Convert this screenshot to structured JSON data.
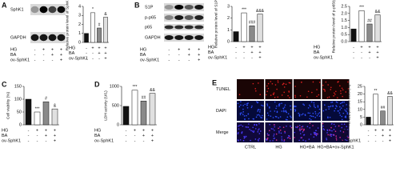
{
  "blots": [
    {
      "panel": "A",
      "bands": [
        "SphK1",
        "GAPDH"
      ],
      "conditions": [
        {
          "label": "HG",
          "signs": [
            "-",
            "+",
            "+",
            "+"
          ]
        },
        {
          "label": "BA",
          "signs": [
            "-",
            "-",
            "+",
            "+"
          ]
        },
        {
          "label": "ov-SphK1",
          "signs": [
            "-",
            "-",
            "-",
            "+"
          ]
        }
      ]
    },
    {
      "panel": "B",
      "bands": [
        "S1P",
        "p-p65",
        "p65",
        "GAPDH"
      ],
      "conditions": [
        {
          "label": "HG",
          "signs": [
            "-",
            "+",
            "+",
            "+"
          ]
        },
        {
          "label": "BA",
          "signs": [
            "-",
            "-",
            "+",
            "+"
          ]
        },
        {
          "label": "ov-SphK1",
          "signs": [
            "-",
            "-",
            "-",
            "+"
          ]
        }
      ]
    }
  ],
  "images": {
    "panel": "E",
    "rows": [
      "TUNEL",
      "DAPI",
      "Merge"
    ],
    "columns": [
      "CTRL",
      "HG",
      "HG+BA",
      "HG+BA+ov-SphK1"
    ]
  },
  "chart_data": [
    {
      "type": "bar",
      "y_label": "Relative protein level of SphK1",
      "values": [
        1.0,
        3.3,
        1.6,
        2.8
      ],
      "annotations": [
        null,
        "*",
        "#",
        "&"
      ],
      "colors": [
        "#111111",
        "#ffffff",
        "#8a8a8a",
        "#e0e0e0"
      ],
      "ylim": [
        0,
        4
      ],
      "yticks": [
        0,
        1,
        2,
        3,
        4
      ],
      "conditions": [
        {
          "label": "HG",
          "signs": [
            "-",
            "+",
            "+",
            "+"
          ]
        },
        {
          "label": "BA",
          "signs": [
            "-",
            "-",
            "+",
            "+"
          ]
        },
        {
          "label": "ov-SphK1",
          "signs": [
            "-",
            "-",
            "-",
            "+"
          ]
        }
      ]
    },
    {
      "type": "bar",
      "y_label": "Relative protein level of S1P",
      "values": [
        0.85,
        2.45,
        1.35,
        2.35
      ],
      "annotations": [
        null,
        "***",
        "###",
        "&&&"
      ],
      "colors": [
        "#111111",
        "#ffffff",
        "#8a8a8a",
        "#e0e0e0"
      ],
      "ylim": [
        0,
        3
      ],
      "yticks": [
        0,
        1,
        2,
        3
      ],
      "conditions": [
        {
          "label": "HG",
          "signs": [
            "-",
            "+",
            "+",
            "+"
          ]
        },
        {
          "label": "BA",
          "signs": [
            "-",
            "-",
            "+",
            "+"
          ]
        },
        {
          "label": "ov-SphK1",
          "signs": [
            "-",
            "-",
            "-",
            "+"
          ]
        }
      ]
    },
    {
      "type": "bar",
      "y_label": "Relative protein level of p-p65/p65",
      "values": [
        0.9,
        2.2,
        1.25,
        1.9
      ],
      "annotations": [
        null,
        "***",
        "##",
        "&&"
      ],
      "colors": [
        "#111111",
        "#ffffff",
        "#8a8a8a",
        "#e0e0e0"
      ],
      "ylim": [
        0,
        2.5
      ],
      "yticks": [
        {
          "value": 0,
          "label": "0.0"
        },
        0.5,
        {
          "value": 1,
          "label": "1.0"
        },
        1.5,
        {
          "value": 2,
          "label": "2.0"
        },
        2.5
      ],
      "conditions": [
        {
          "label": "HG",
          "signs": [
            "-",
            "+",
            "+",
            "+"
          ]
        },
        {
          "label": "BA",
          "signs": [
            "-",
            "-",
            "+",
            "+"
          ]
        },
        {
          "label": "ov-SphK1",
          "signs": [
            "-",
            "-",
            "-",
            "+"
          ]
        }
      ]
    },
    {
      "type": "bar",
      "panel": "C",
      "y_label": "Cell viability (%)",
      "values": [
        100,
        50,
        90,
        62
      ],
      "annotations": [
        null,
        "***",
        "#",
        "&"
      ],
      "colors": [
        "#111111",
        "#ffffff",
        "#8a8a8a",
        "#e0e0e0"
      ],
      "ylim": [
        0,
        150
      ],
      "yticks": [
        0,
        50,
        100,
        150
      ],
      "conditions": [
        {
          "label": "HG",
          "signs": [
            "-",
            "+",
            "+",
            "+"
          ]
        },
        {
          "label": "BA",
          "signs": [
            "-",
            "-",
            "+",
            "+"
          ]
        },
        {
          "label": "ov-SphK1",
          "signs": [
            "-",
            "-",
            "-",
            "+"
          ]
        }
      ]
    },
    {
      "type": "bar",
      "panel": "D",
      "y_label": "LDH activity (U/L)",
      "values": [
        480,
        900,
        620,
        820
      ],
      "annotations": [
        null,
        "***",
        "##",
        "&&"
      ],
      "colors": [
        "#111111",
        "#ffffff",
        "#8a8a8a",
        "#e0e0e0"
      ],
      "ylim": [
        0,
        1000
      ],
      "yticks": [
        0,
        500,
        1000
      ],
      "conditions": [
        {
          "label": "HG",
          "signs": [
            "-",
            "+",
            "+",
            "+"
          ]
        },
        {
          "label": "BA",
          "signs": [
            "-",
            "-",
            "+",
            "+"
          ]
        },
        {
          "label": "ov-SphK1",
          "signs": [
            "-",
            "-",
            "-",
            "+"
          ]
        }
      ]
    },
    {
      "type": "bar",
      "y_label": "TUNEL positive cells (%)",
      "values": [
        5,
        20,
        9,
        18.5
      ],
      "annotations": [
        null,
        "**",
        "##",
        "&&"
      ],
      "colors": [
        "#111111",
        "#ffffff",
        "#8a8a8a",
        "#e0e0e0"
      ],
      "ylim": [
        0,
        25
      ],
      "yticks": [
        0,
        5,
        10,
        15,
        20,
        25
      ],
      "conditions": [
        {
          "label": "HG",
          "signs": [
            "-",
            "+",
            "+",
            "+"
          ]
        },
        {
          "label": "BA",
          "signs": [
            "-",
            "-",
            "+",
            "+"
          ]
        },
        {
          "label": "ov-SphK1",
          "signs": [
            "-",
            "-",
            "-",
            "+"
          ]
        }
      ]
    }
  ]
}
